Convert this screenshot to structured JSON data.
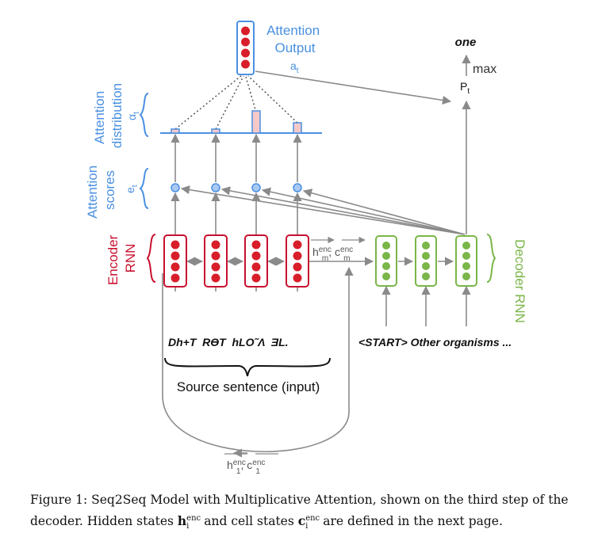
{
  "diagram": {
    "attention_output_label": "Attention\nOutput",
    "attention_output_var": "a",
    "attention_output_var_sub": "t",
    "attention_distribution_label": "Attention\ndistribution",
    "attention_distribution_var": "α",
    "attention_distribution_var_sub": "t",
    "attention_scores_label": "Attention\nscores",
    "attention_scores_var": "e",
    "attention_scores_var_sub": "t",
    "encoder_label": "Encoder\nRNN",
    "decoder_label": "Decoder RNN",
    "output_word": "one",
    "max_label": "max",
    "p_label": "P",
    "p_label_sub": "t",
    "h_enc_m": "h",
    "h_enc_m_sup": "enc",
    "h_enc_m_sub": "m",
    "c_enc_m": "c",
    "c_enc_m_sup": "enc",
    "c_enc_m_sub": "m",
    "h_enc_1": "h",
    "h_enc_1_sup": "enc",
    "h_enc_1_sub": "1",
    "c_enc_1": "c",
    "c_enc_1_sup": "enc",
    "c_enc_1_sub": "1",
    "source_words": "Dh+T  RƟT  hLO˜Λ  ƎL.",
    "target_words": "<START> Other organisms ...",
    "source_sentence_label": "Source sentence (input)",
    "colors": {
      "blue": "#4a90e2",
      "red": "#c8102e",
      "green": "#7ab648",
      "gray": "#8a8a8a",
      "bar_fill": "#f6c9c9"
    }
  },
  "caption": {
    "prefix": "Figure 1: Seq2Seq Model with Multiplicative Attention, shown on the third step of the decoder. Hidden states ",
    "h_symbol": "h",
    "h_sup": "enc",
    "h_sub": "i",
    "middle": " and cell states ",
    "c_symbol": "c",
    "c_sup": "enc",
    "c_sub": "i",
    "suffix": " are defined in the next page."
  }
}
